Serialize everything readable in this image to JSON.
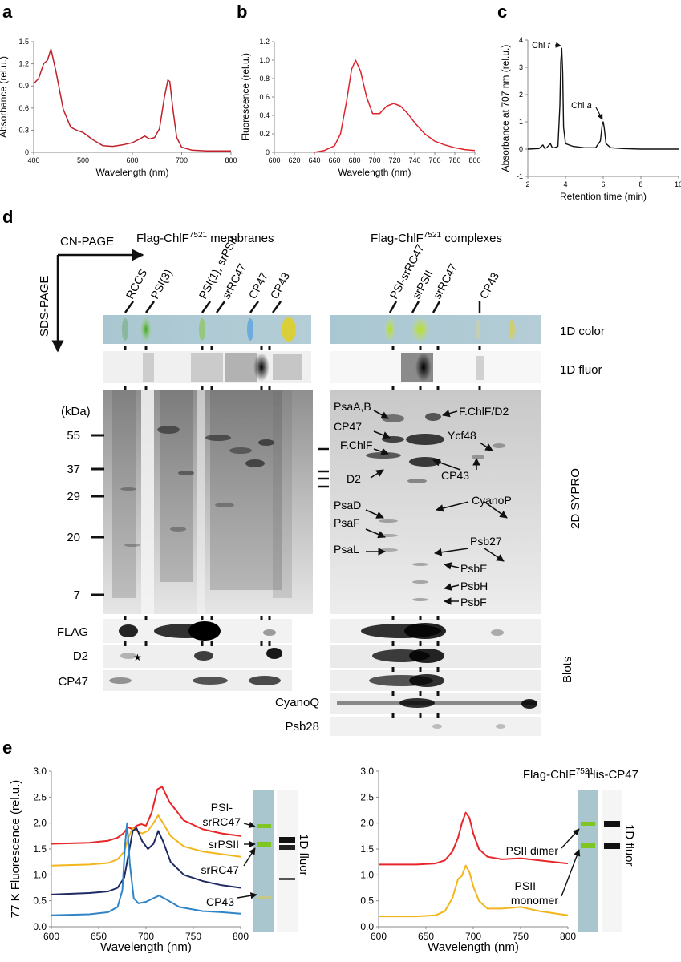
{
  "panels": {
    "a": {
      "letter": "a",
      "chart_data": {
        "type": "line",
        "xlabel": "Wavelength (nm)",
        "ylabel": "Absorbance  (rel.u.)",
        "xlim": [
          400,
          800
        ],
        "ylim": [
          0,
          1.5
        ],
        "xticks": [
          400,
          500,
          600,
          700,
          800
        ],
        "yticks": [
          0,
          0.3,
          0.6,
          0.9,
          1.2,
          1.5
        ],
        "ytick_labels": [
          "0",
          "0.3",
          "0.6",
          "0.9",
          "1.2",
          "1.5"
        ],
        "series": [
          {
            "color": "#c0202b",
            "x": [
              400,
              410,
              420,
              428,
              435,
              445,
              460,
              475,
              490,
              500,
              520,
              540,
              560,
              580,
              600,
              615,
              625,
              635,
              645,
              655,
              665,
              672,
              676,
              682,
              690,
              700,
              720,
              750,
              800
            ],
            "y": [
              0.93,
              1.0,
              1.2,
              1.25,
              1.4,
              1.1,
              0.58,
              0.34,
              0.29,
              0.27,
              0.17,
              0.09,
              0.08,
              0.1,
              0.13,
              0.18,
              0.22,
              0.18,
              0.2,
              0.32,
              0.75,
              0.98,
              0.96,
              0.6,
              0.2,
              0.07,
              0.03,
              0.02,
              0.02
            ]
          }
        ]
      }
    },
    "b": {
      "letter": "b",
      "chart_data": {
        "type": "line",
        "xlabel": "Wavelength (nm)",
        "ylabel": "Fluorescence  (rel.u.)",
        "xlim": [
          600,
          800
        ],
        "ylim": [
          0,
          1.2
        ],
        "xticks": [
          600,
          620,
          640,
          660,
          680,
          700,
          720,
          740,
          760,
          780,
          800
        ],
        "yticks": [
          0,
          0.2,
          0.4,
          0.6,
          0.8,
          1.0,
          1.2
        ],
        "ytick_labels": [
          "0",
          "0.2",
          "0.4",
          "0.6",
          "0.8",
          "1.0",
          "1.2"
        ],
        "series": [
          {
            "color": "#e0222c",
            "x": [
              640,
              650,
              660,
              666,
              672,
              677,
              681,
              686,
              692,
              698,
              705,
              712,
              719,
              726,
              733,
              740,
              750,
              760,
              770,
              780,
              790,
              800
            ],
            "y": [
              0.0,
              0.02,
              0.07,
              0.2,
              0.55,
              0.9,
              1.0,
              0.88,
              0.6,
              0.42,
              0.42,
              0.5,
              0.53,
              0.5,
              0.42,
              0.32,
              0.2,
              0.12,
              0.08,
              0.05,
              0.03,
              0.02
            ]
          }
        ]
      }
    },
    "c": {
      "letter": "c",
      "chart_data": {
        "type": "line",
        "xlabel": "Retention time (min)",
        "ylabel": "Absorbance at 707 nm  (rel.u.)",
        "xlim": [
          2,
          10
        ],
        "ylim": [
          -1,
          4
        ],
        "xticks": [
          2,
          4,
          6,
          8,
          10
        ],
        "yticks": [
          -1,
          0,
          1,
          2,
          3,
          4
        ],
        "ytick_labels": [
          "-1",
          "0",
          "1",
          "2",
          "3",
          "4"
        ],
        "series": [
          {
            "color": "#111111",
            "x": [
              2.0,
              2.6,
              2.8,
              2.9,
              3.0,
              3.2,
              3.3,
              3.4,
              3.6,
              3.7,
              3.75,
              3.8,
              3.85,
              3.9,
              4.0,
              4.4,
              5.0,
              5.6,
              5.85,
              5.95,
              6.0,
              6.05,
              6.15,
              6.4,
              7.0,
              8.0,
              9.0,
              10.0
            ],
            "y": [
              0.0,
              0.02,
              0.15,
              0.03,
              0.05,
              0.2,
              0.05,
              0.05,
              0.1,
              1.6,
              3.2,
              3.7,
              2.8,
              0.8,
              0.2,
              0.1,
              0.05,
              0.05,
              0.3,
              0.9,
              1.0,
              0.8,
              0.2,
              0.05,
              0.02,
              0.0,
              0.0,
              0.0
            ]
          }
        ],
        "annotations": [
          {
            "label": "Chl ",
            "italic": "f",
            "x": 3.8,
            "y": 3.7
          },
          {
            "label": "Chl ",
            "italic": "a",
            "x": 6.0,
            "y": 1.0
          }
        ]
      }
    },
    "d": {
      "letter": "d",
      "cn_page": "CN-PAGE",
      "sds_page": "SDS-PAGE",
      "membranes_title": "Flag-ChlF",
      "complexes_title": "Flag-ChlF",
      "superscript": "7521",
      "membranes_suffix": " membranes",
      "complexes_suffix": " complexes",
      "left_lanes": [
        "RCCS",
        "PSI(3)",
        "PSI(1), srPSII",
        "srRC47",
        "CP47",
        "CP43"
      ],
      "right_lanes": [
        "PSI-srRC47",
        "srPSII",
        "srRC47",
        "CP43"
      ],
      "row_labels": [
        "1D color",
        "1D fluor",
        "2D SYPRO",
        "Blots"
      ],
      "kda_label": "(kDa)",
      "kda_marks": [
        "55",
        "37",
        "29",
        "20",
        "7"
      ],
      "protein_labels": [
        "PsaA,B",
        "CP47",
        "F.ChlF",
        "D2",
        "PsaD",
        "PsaF",
        "PsaL",
        "F.ChlF/D2",
        "Ycf48",
        "CP43",
        "CyanoP",
        "Psb27",
        "PsbE",
        "PsbH",
        "PsbF"
      ],
      "blot_labels": [
        "FLAG",
        "D2",
        "CP47",
        "CyanoQ",
        "Psb28"
      ],
      "star": "★"
    },
    "e": {
      "letter": "e",
      "left": {
        "title": "Flag-ChlF",
        "title_sup": "7521",
        "fluor_label": "1D fluor",
        "chart_data": {
          "type": "line",
          "xlabel": "Wavelength (nm)",
          "ylabel": "77 K Fluorescence  (rel.u.)",
          "xlim": [
            600,
            800
          ],
          "ylim": [
            0,
            3.0
          ],
          "xticks": [
            600,
            650,
            700,
            750,
            800
          ],
          "yticks": [
            0,
            0.5,
            1.0,
            1.5,
            2.0,
            2.5,
            3.0
          ],
          "ytick_labels": [
            "0.0",
            "0.5",
            "1.0",
            "1.5",
            "2.0",
            "2.5",
            "3.0"
          ],
          "series": [
            {
              "name": "PSI-srRC47",
              "color": "#e8262a",
              "x": [
                600,
                640,
                660,
                670,
                676,
                681,
                686,
                690,
                695,
                700,
                706,
                712,
                717,
                725,
                740,
                760,
                780,
                800
              ],
              "y": [
                1.6,
                1.62,
                1.66,
                1.72,
                1.8,
                1.92,
                1.88,
                1.95,
                1.98,
                1.95,
                2.2,
                2.65,
                2.7,
                2.4,
                2.05,
                1.88,
                1.8,
                1.75
              ]
            },
            {
              "name": "srPSII",
              "color": "#f3b51c",
              "x": [
                600,
                640,
                660,
                670,
                677,
                682,
                686,
                690,
                696,
                702,
                708,
                713,
                718,
                726,
                740,
                760,
                780,
                800
              ],
              "y": [
                1.18,
                1.2,
                1.23,
                1.3,
                1.45,
                1.75,
                1.9,
                1.85,
                1.8,
                1.85,
                2.0,
                2.15,
                2.0,
                1.75,
                1.55,
                1.45,
                1.4,
                1.35
              ]
            },
            {
              "name": "srRC47",
              "color": "#1f2a63",
              "x": [
                600,
                640,
                660,
                670,
                677,
                682,
                686,
                690,
                696,
                702,
                708,
                713,
                718,
                726,
                740,
                760,
                780,
                800
              ],
              "y": [
                0.62,
                0.65,
                0.68,
                0.75,
                0.95,
                1.45,
                1.85,
                1.9,
                1.65,
                1.5,
                1.6,
                1.85,
                1.65,
                1.25,
                1.0,
                0.88,
                0.8,
                0.75
              ]
            },
            {
              "name": "CP43",
              "color": "#2f84c8",
              "x": [
                600,
                640,
                660,
                670,
                675,
                678,
                680,
                683,
                687,
                692,
                700,
                708,
                714,
                722,
                735,
                760,
                780,
                800
              ],
              "y": [
                0.22,
                0.24,
                0.28,
                0.38,
                0.7,
                1.6,
                2.0,
                1.2,
                0.55,
                0.45,
                0.48,
                0.55,
                0.6,
                0.52,
                0.38,
                0.3,
                0.28,
                0.25
              ]
            }
          ]
        }
      },
      "right": {
        "title": "His-CP47",
        "fluor_label": "1D fluor",
        "chart_data": {
          "type": "line",
          "xlabel": "Wavelength (nm)",
          "ylabel": "",
          "xlim": [
            600,
            800
          ],
          "ylim": [
            0,
            3.0
          ],
          "xticks": [
            600,
            650,
            700,
            750,
            800
          ],
          "yticks": [
            0,
            0.5,
            1.0,
            1.5,
            2.0,
            2.5,
            3.0
          ],
          "ytick_labels": [
            "0.0",
            "0.5",
            "1.0",
            "1.5",
            "2.0",
            "2.5",
            "3.0"
          ],
          "series": [
            {
              "name": "PSII dimer",
              "color": "#e8262a",
              "x": [
                600,
                640,
                660,
                670,
                678,
                684,
                688,
                692,
                696,
                700,
                706,
                715,
                730,
                750,
                770,
                800
              ],
              "y": [
                1.2,
                1.2,
                1.22,
                1.28,
                1.45,
                1.72,
                2.0,
                2.2,
                2.1,
                1.8,
                1.5,
                1.35,
                1.3,
                1.32,
                1.28,
                1.22
              ]
            },
            {
              "name": "PSII monomer",
              "color": "#f3b51c",
              "x": [
                600,
                640,
                660,
                670,
                678,
                684,
                688,
                692,
                696,
                700,
                706,
                715,
                730,
                750,
                770,
                800
              ],
              "y": [
                0.2,
                0.2,
                0.22,
                0.3,
                0.55,
                0.92,
                0.98,
                1.18,
                1.05,
                0.78,
                0.5,
                0.35,
                0.35,
                0.38,
                0.3,
                0.22
              ]
            }
          ]
        }
      }
    }
  }
}
